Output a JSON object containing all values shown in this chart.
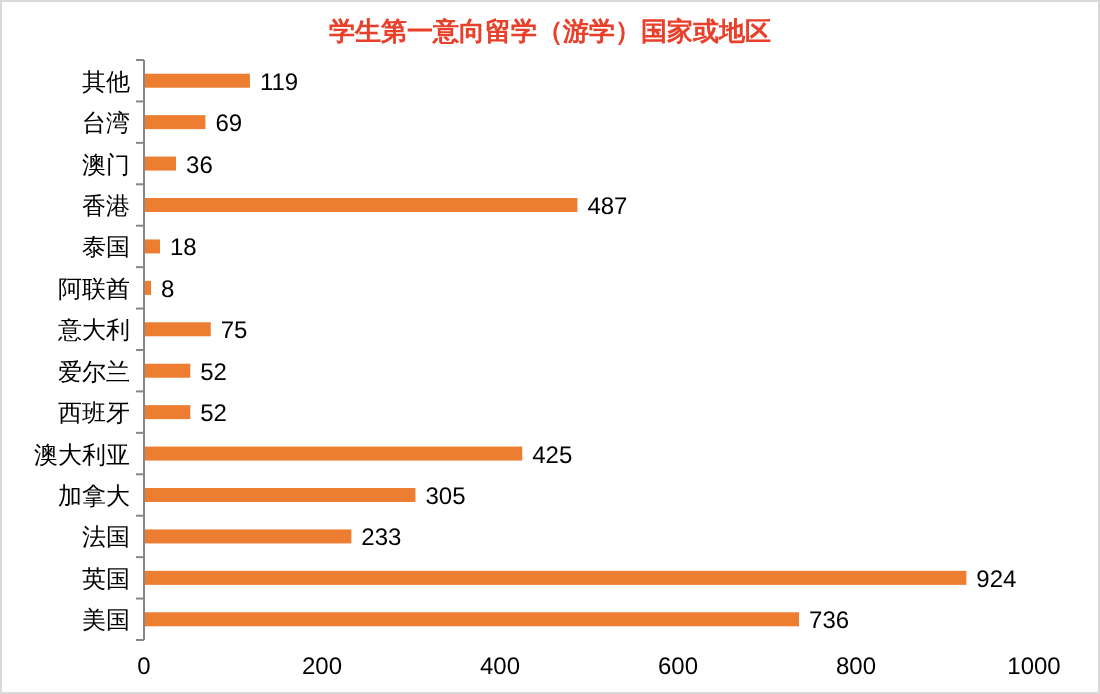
{
  "chart_data": {
    "type": "bar",
    "orientation": "horizontal",
    "title": "学生第一意向留学（游学）国家或地区",
    "categories": [
      "其他",
      "台湾",
      "澳门",
      "香港",
      "泰国",
      "阿联酋",
      "意大利",
      "爱尔兰",
      "西班牙",
      "澳大利亚",
      "加拿大",
      "法国",
      "英国",
      "美国"
    ],
    "values": [
      119,
      69,
      36,
      487,
      18,
      8,
      75,
      52,
      52,
      425,
      305,
      233,
      924,
      736
    ],
    "color": "#ed7d31",
    "xlim": [
      0,
      1000
    ],
    "xticks": [
      0,
      200,
      400,
      600,
      800,
      1000
    ],
    "data_labels": true,
    "grid": false
  }
}
